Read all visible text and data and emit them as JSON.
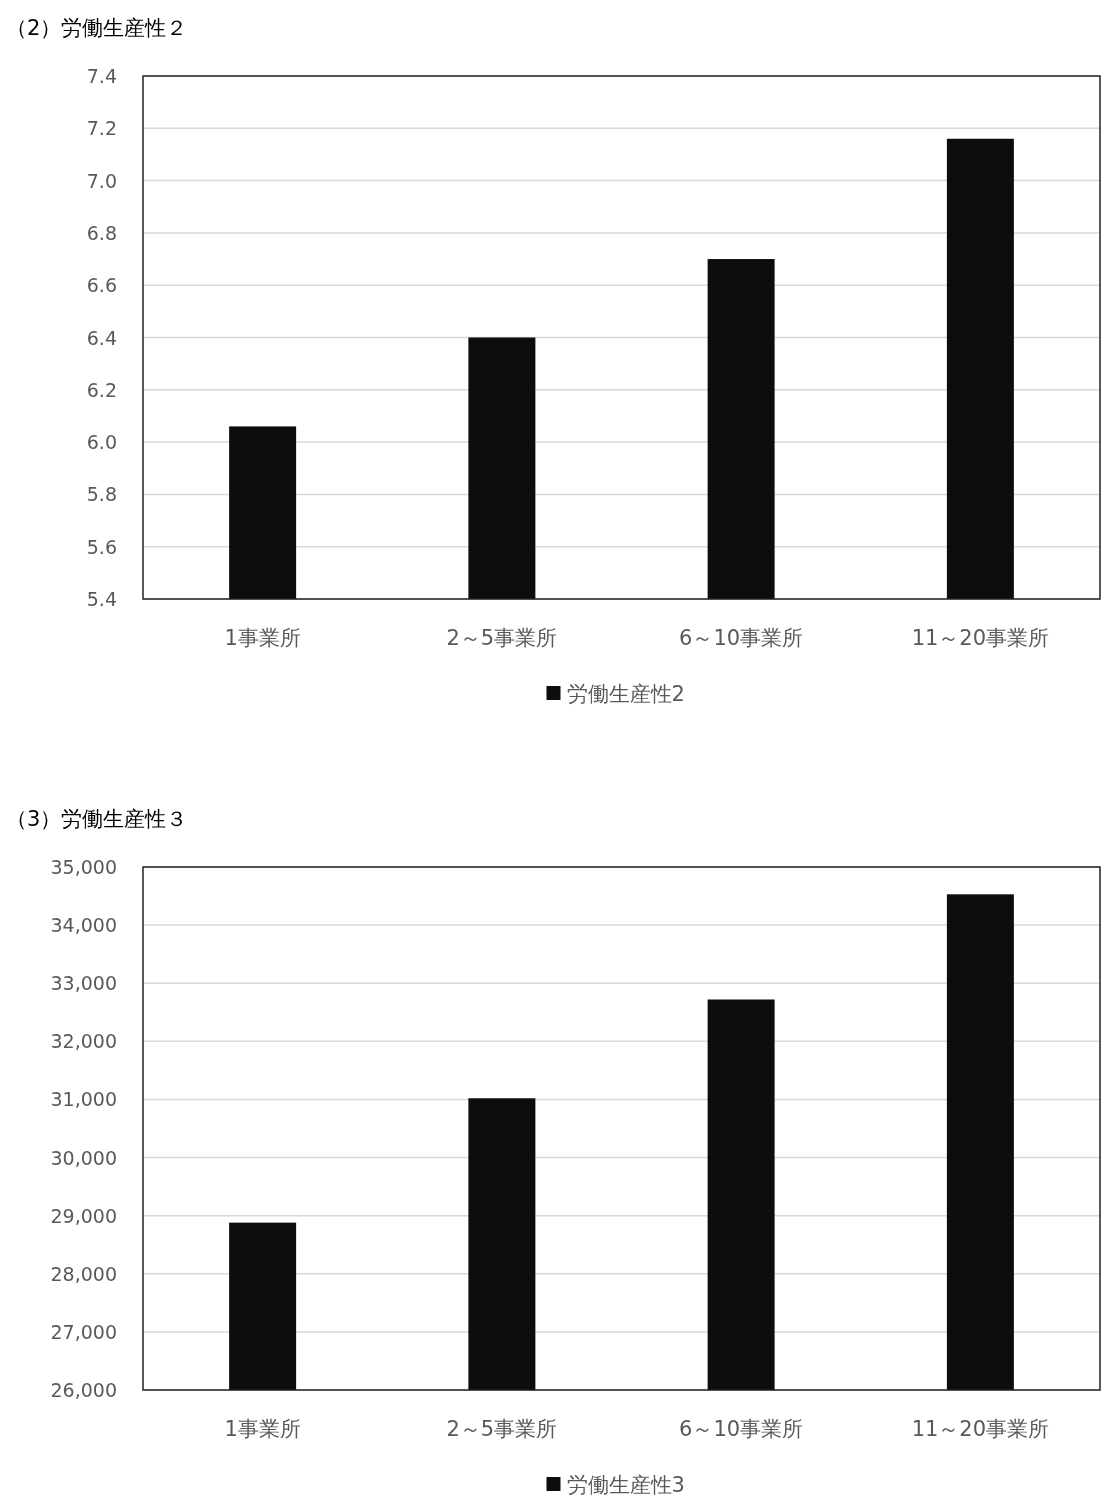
{
  "chart_data": [
    {
      "type": "bar",
      "title": "（2）労働生産性２",
      "categories": [
        "1事業所",
        "2～5事業所",
        "6～10事業所",
        "11～20事業所"
      ],
      "series": [
        {
          "name": "労働生産性2",
          "color": "#0d0d0d",
          "values": [
            6.06,
            6.4,
            6.7,
            7.16
          ]
        }
      ],
      "ylim": [
        5.4,
        7.4
      ],
      "yticks": [
        {
          "value": 5.4,
          "label": "5.4"
        },
        {
          "value": 5.6,
          "label": "5.6"
        },
        {
          "value": 5.8,
          "label": "5.8"
        },
        {
          "value": 6.0,
          "label": "6.0"
        },
        {
          "value": 6.2,
          "label": "6.2"
        },
        {
          "value": 6.4,
          "label": "6.4"
        },
        {
          "value": 6.6,
          "label": "6.6"
        },
        {
          "value": 6.8,
          "label": "6.8"
        },
        {
          "value": 7.0,
          "label": "7.0"
        },
        {
          "value": 7.2,
          "label": "7.2"
        },
        {
          "value": 7.4,
          "label": "7.4"
        }
      ],
      "grid": "y",
      "legend": "bottom"
    },
    {
      "type": "bar",
      "title": "（3）労働生産性３",
      "categories": [
        "1事業所",
        "2～5事業所",
        "6～10事業所",
        "11～20事業所"
      ],
      "series": [
        {
          "name": "労働生産性3",
          "color": "#0d0d0d",
          "values": [
            28880,
            31020,
            32720,
            34530
          ]
        }
      ],
      "ylim": [
        26000,
        35000
      ],
      "yticks": [
        {
          "value": 26000,
          "label": "26,000"
        },
        {
          "value": 27000,
          "label": "27,000"
        },
        {
          "value": 28000,
          "label": "28,000"
        },
        {
          "value": 29000,
          "label": "29,000"
        },
        {
          "value": 30000,
          "label": "30,000"
        },
        {
          "value": 31000,
          "label": "31,000"
        },
        {
          "value": 32000,
          "label": "32,000"
        },
        {
          "value": 33000,
          "label": "33,000"
        },
        {
          "value": 34000,
          "label": "34,000"
        },
        {
          "value": 35000,
          "label": "35,000"
        }
      ],
      "grid": "y",
      "legend": "bottom"
    }
  ]
}
